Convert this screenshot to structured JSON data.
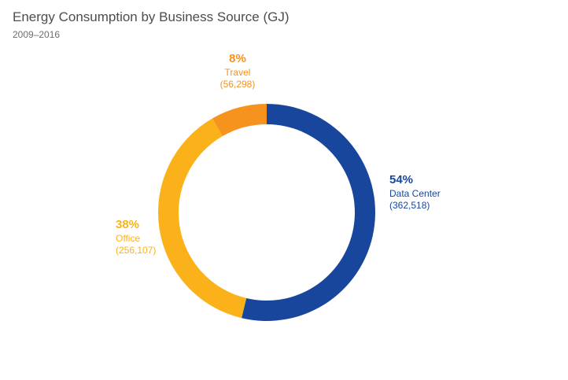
{
  "title": "Energy Consumption by Business Source (GJ)",
  "subtitle": "2009–2016",
  "chart_data": {
    "type": "pie",
    "title": "Energy Consumption by Business Source (GJ)",
    "subtitle": "2009–2016",
    "style": "donut",
    "slices": [
      {
        "name": "Data Center",
        "percent_label": "54%",
        "value": 362518,
        "value_label": "(362,518)",
        "color": "#18469c"
      },
      {
        "name": "Office",
        "percent_label": "38%",
        "value": 256107,
        "value_label": "(256,107)",
        "color": "#fbb21a"
      },
      {
        "name": "Travel",
        "percent_label": "8%",
        "value": 56298,
        "value_label": "(56,298)",
        "color": "#f6921e"
      }
    ]
  }
}
